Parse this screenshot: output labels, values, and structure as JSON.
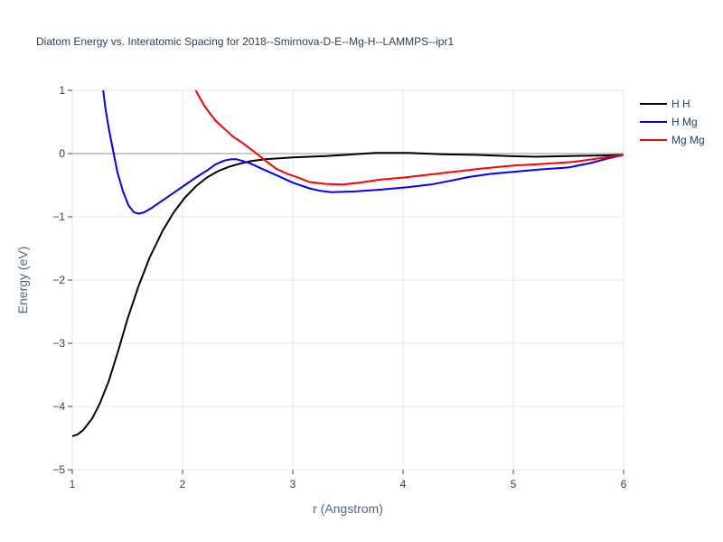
{
  "chart_data": {
    "type": "line",
    "title": "Diatom Energy vs. Interatomic Spacing for 2018--Smirnova-D-E--Mg-H--LAMMPS--ipr1",
    "xlabel": "r (Angstrom)",
    "ylabel": "Energy (eV)",
    "xlim": [
      1,
      6
    ],
    "ylim": [
      -5,
      1
    ],
    "xticks": [
      1,
      2,
      3,
      4,
      5,
      6
    ],
    "yticks": [
      1,
      0,
      -1,
      -2,
      -3,
      -4,
      -5
    ],
    "xtick_labels": [
      "1",
      "2",
      "3",
      "4",
      "5",
      "6"
    ],
    "ytick_labels": [
      "1",
      "0",
      "−1",
      "−2",
      "−3",
      "−4",
      "−5"
    ],
    "grid": true,
    "legend": "right",
    "series": [
      {
        "name": "H H",
        "color": "#000000",
        "x": [
          1.0,
          1.05,
          1.1,
          1.18,
          1.25,
          1.33,
          1.42,
          1.5,
          1.6,
          1.7,
          1.82,
          1.92,
          2.02,
          2.12,
          2.22,
          2.32,
          2.42,
          2.52,
          2.62,
          2.75,
          3.0,
          3.3,
          3.75,
          4.05,
          4.35,
          4.65,
          4.95,
          5.2,
          5.5,
          5.8,
          6.0
        ],
        "y": [
          -4.47,
          -4.44,
          -4.37,
          -4.19,
          -3.95,
          -3.6,
          -3.1,
          -2.62,
          -2.1,
          -1.65,
          -1.22,
          -0.93,
          -0.7,
          -0.52,
          -0.38,
          -0.28,
          -0.21,
          -0.16,
          -0.12,
          -0.09,
          -0.06,
          -0.04,
          0.01,
          0.01,
          -0.01,
          -0.02,
          -0.04,
          -0.05,
          -0.04,
          -0.03,
          -0.02
        ]
      },
      {
        "name": "H Mg",
        "color": "#0000ff",
        "x": [
          1.28,
          1.3,
          1.33,
          1.37,
          1.41,
          1.46,
          1.51,
          1.56,
          1.6,
          1.65,
          1.72,
          1.82,
          1.92,
          2.02,
          2.12,
          2.22,
          2.3,
          2.38,
          2.44,
          2.49,
          2.55,
          2.62,
          2.72,
          2.85,
          3.0,
          3.15,
          3.25,
          3.35,
          3.55,
          3.8,
          4.05,
          4.25,
          4.4,
          4.6,
          4.8,
          5.0,
          5.25,
          5.5,
          5.7,
          5.85,
          6.0
        ],
        "y": [
          1.0,
          0.72,
          0.4,
          0.05,
          -0.3,
          -0.6,
          -0.82,
          -0.93,
          -0.95,
          -0.93,
          -0.86,
          -0.74,
          -0.62,
          -0.5,
          -0.38,
          -0.27,
          -0.17,
          -0.11,
          -0.09,
          -0.09,
          -0.12,
          -0.16,
          -0.24,
          -0.34,
          -0.46,
          -0.55,
          -0.59,
          -0.61,
          -0.6,
          -0.57,
          -0.53,
          -0.49,
          -0.44,
          -0.37,
          -0.32,
          -0.29,
          -0.25,
          -0.22,
          -0.15,
          -0.08,
          -0.02
        ]
      },
      {
        "name": "Mg Mg",
        "color": "#ff0000",
        "x": [
          2.12,
          2.16,
          2.2,
          2.25,
          2.3,
          2.38,
          2.45,
          2.55,
          2.65,
          2.75,
          2.85,
          2.95,
          3.05,
          3.15,
          3.3,
          3.45,
          3.6,
          3.8,
          4.0,
          4.25,
          4.45,
          4.7,
          5.0,
          5.3,
          5.55,
          5.8,
          6.0
        ],
        "y": [
          1.0,
          0.87,
          0.75,
          0.63,
          0.52,
          0.39,
          0.28,
          0.16,
          0.03,
          -0.11,
          -0.24,
          -0.32,
          -0.38,
          -0.45,
          -0.48,
          -0.49,
          -0.46,
          -0.41,
          -0.38,
          -0.33,
          -0.29,
          -0.24,
          -0.19,
          -0.16,
          -0.13,
          -0.07,
          -0.02
        ]
      }
    ]
  }
}
